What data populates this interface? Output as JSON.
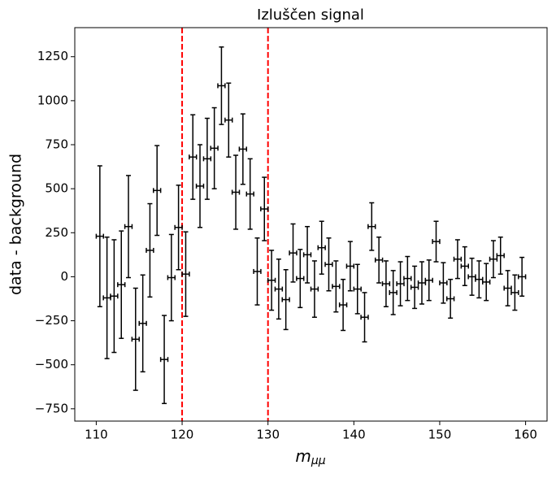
{
  "chart_data": {
    "type": "errorbar",
    "title": "Izluščen signal",
    "xlabel": "m",
    "xlabel_subscript": "μμ",
    "ylabel": "data - background",
    "x": [
      110.42,
      111.25,
      112.08,
      112.92,
      113.75,
      114.58,
      115.42,
      116.25,
      117.08,
      117.92,
      118.75,
      119.58,
      120.42,
      121.25,
      122.08,
      122.92,
      123.75,
      124.58,
      125.42,
      126.25,
      127.08,
      127.92,
      128.75,
      129.58,
      130.42,
      131.25,
      132.08,
      132.92,
      133.75,
      134.58,
      135.42,
      136.25,
      137.08,
      137.92,
      138.75,
      139.58,
      140.42,
      141.25,
      142.08,
      142.92,
      143.75,
      144.58,
      145.42,
      146.25,
      147.08,
      147.92,
      148.75,
      149.58,
      150.42,
      151.25,
      152.08,
      152.92,
      153.75,
      154.58,
      155.42,
      156.25,
      157.08,
      157.92,
      158.75,
      159.58
    ],
    "values": [
      230,
      -120,
      -110,
      -45,
      285,
      -355,
      -265,
      150,
      490,
      -470,
      -5,
      280,
      15,
      680,
      515,
      670,
      730,
      1085,
      890,
      480,
      725,
      470,
      30,
      385,
      -20,
      -70,
      -130,
      135,
      -10,
      125,
      -70,
      165,
      70,
      -55,
      -160,
      60,
      -70,
      -230,
      285,
      95,
      -40,
      -90,
      -40,
      -10,
      -60,
      -35,
      -20,
      200,
      -35,
      -125,
      100,
      60,
      0,
      -15,
      -30,
      100,
      120,
      -65,
      -90,
      0
    ],
    "yerr": [
      400,
      345,
      320,
      305,
      290,
      290,
      275,
      265,
      255,
      250,
      245,
      240,
      240,
      240,
      235,
      230,
      230,
      220,
      210,
      210,
      200,
      200,
      190,
      180,
      170,
      170,
      170,
      165,
      165,
      160,
      160,
      150,
      150,
      145,
      145,
      140,
      140,
      140,
      135,
      130,
      130,
      125,
      125,
      125,
      120,
      120,
      115,
      115,
      115,
      110,
      110,
      110,
      105,
      105,
      105,
      105,
      105,
      100,
      100,
      110
    ],
    "xerr": 0.42,
    "color": "#000000",
    "vlines": [
      120,
      130
    ],
    "vline_color": "#ff0000",
    "xlim": [
      107.5,
      162.5
    ],
    "xticks": [
      110,
      120,
      130,
      140,
      150,
      160
    ],
    "ylim": [
      -820,
      1415
    ],
    "yticks": [
      {
        "value": -750,
        "label": "−750"
      },
      {
        "value": -500,
        "label": "−500"
      },
      {
        "value": -250,
        "label": "−250"
      },
      0,
      250,
      500,
      750,
      1000,
      1250
    ]
  }
}
